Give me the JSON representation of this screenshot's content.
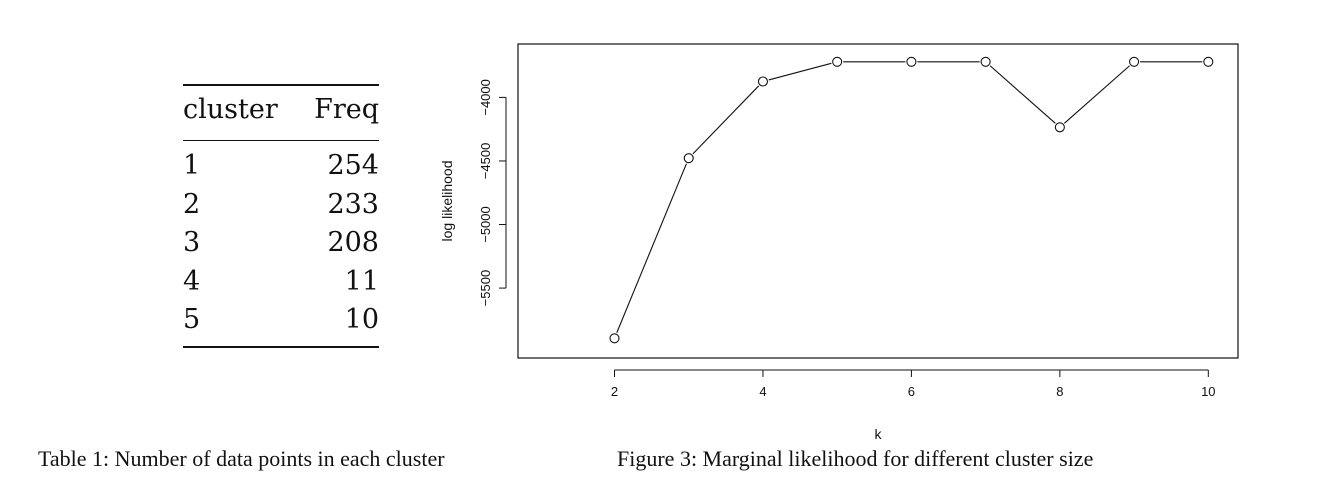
{
  "table": {
    "headers": [
      "cluster",
      "Freq"
    ],
    "rows": [
      [
        "1",
        "254"
      ],
      [
        "2",
        "233"
      ],
      [
        "3",
        "208"
      ],
      [
        "4",
        "11"
      ],
      [
        "5",
        "10"
      ]
    ],
    "caption": "Table 1: Number of data points in each cluster"
  },
  "figure": {
    "caption": "Figure 3: Marginal likelihood for different cluster size"
  },
  "chart_data": {
    "type": "line",
    "markers": "open-circle",
    "xlabel": "k",
    "ylabel": "log likelihood",
    "xlim": [
      0.7,
      10.4
    ],
    "ylim": [
      -6050,
      -3580
    ],
    "xticks": [
      2,
      4,
      6,
      8,
      10
    ],
    "yticks": [
      -5500,
      -5000,
      -4500,
      -4000
    ],
    "x": [
      2,
      3,
      4,
      5,
      6,
      7,
      8,
      9,
      10
    ],
    "y": [
      -5895,
      -4478,
      -3875,
      -3720,
      -3720,
      -3720,
      -4235,
      -3720,
      -3720
    ],
    "grid": false
  }
}
